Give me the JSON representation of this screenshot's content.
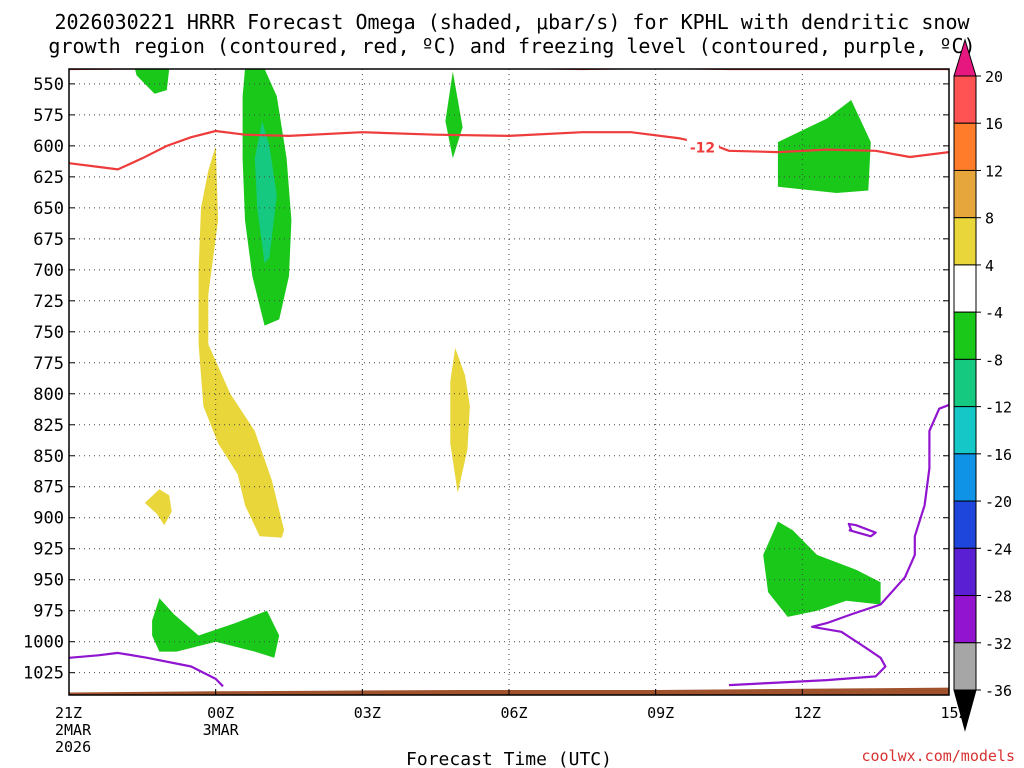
{
  "chart_data": {
    "type": "contour",
    "title_lines": [
      "2026030221 HRRR Forecast Omega (shaded, μbar/s) for KPHL with dendritic snow",
      "growth region (contoured, red, ºC) and freezing level (contoured, purple, ºC)"
    ],
    "xlabel": "Forecast Time (UTC)",
    "credit": "coolwx.com/models",
    "x_range_hours": [
      0,
      18
    ],
    "x_ticks": [
      {
        "hour": 0,
        "lines": [
          "21Z",
          "2MAR",
          "2026"
        ]
      },
      {
        "hour": 3,
        "lines": [
          "00Z",
          "3MAR"
        ]
      },
      {
        "hour": 6,
        "lines": [
          "03Z"
        ]
      },
      {
        "hour": 9,
        "lines": [
          "06Z"
        ]
      },
      {
        "hour": 12,
        "lines": [
          "09Z"
        ]
      },
      {
        "hour": 15,
        "lines": [
          "12Z"
        ]
      },
      {
        "hour": 18,
        "lines": [
          "15Z"
        ]
      }
    ],
    "y_range_mb": [
      538,
      1043
    ],
    "y_ticks": [
      550,
      575,
      600,
      625,
      650,
      675,
      700,
      725,
      750,
      775,
      800,
      825,
      850,
      875,
      900,
      925,
      950,
      975,
      1000,
      1025
    ],
    "colorbar": {
      "levels": [
        20,
        16,
        12,
        8,
        4,
        -4,
        -8,
        -12,
        -16,
        -20,
        -24,
        -28,
        -32,
        -36
      ],
      "colors": [
        "#ff5252",
        "#ff7d2a",
        "#e6a63b",
        "#e8d63a",
        "#ffffff",
        "#19c819",
        "#16c980",
        "#16c7c7",
        "#0f93e6",
        "#1f46dc",
        "#5a1fd2",
        "#9314d0",
        "#a6a6a6"
      ],
      "top_color": "#e6177f",
      "bottom_color": "#000000"
    },
    "shaded_regions": [
      {
        "name": "green-top-left",
        "value_range": [
          -8,
          -4
        ],
        "color": "#19c819",
        "points": [
          [
            1.35,
            538
          ],
          [
            2.05,
            538
          ],
          [
            2.0,
            555
          ],
          [
            1.75,
            558
          ],
          [
            1.55,
            550
          ],
          [
            1.38,
            543
          ]
        ]
      },
      {
        "name": "green-column",
        "value_range": [
          -8,
          -4
        ],
        "color": "#19c819",
        "points": [
          [
            3.6,
            538
          ],
          [
            4.0,
            538
          ],
          [
            4.25,
            560
          ],
          [
            4.45,
            610
          ],
          [
            4.55,
            660
          ],
          [
            4.5,
            705
          ],
          [
            4.3,
            740
          ],
          [
            4.0,
            745
          ],
          [
            3.75,
            705
          ],
          [
            3.6,
            660
          ],
          [
            3.55,
            610
          ],
          [
            3.55,
            560
          ]
        ]
      },
      {
        "name": "teal-core",
        "value_range": [
          -12,
          -8
        ],
        "color": "#16c980",
        "points": [
          [
            3.95,
            580
          ],
          [
            4.1,
            600
          ],
          [
            4.25,
            640
          ],
          [
            4.1,
            690
          ],
          [
            4.0,
            695
          ],
          [
            3.85,
            650
          ],
          [
            3.8,
            610
          ]
        ]
      },
      {
        "name": "green-sliver-mid",
        "value_range": [
          -8,
          -4
        ],
        "color": "#19c819",
        "points": [
          [
            7.85,
            540
          ],
          [
            8.05,
            585
          ],
          [
            7.85,
            610
          ],
          [
            7.7,
            580
          ]
        ]
      },
      {
        "name": "yellow-plume",
        "value_range": [
          4,
          8
        ],
        "color": "#e8d63a",
        "points": [
          [
            3.0,
            600
          ],
          [
            3.05,
            660
          ],
          [
            2.85,
            720
          ],
          [
            2.85,
            760
          ],
          [
            3.3,
            800
          ],
          [
            3.8,
            830
          ],
          [
            4.15,
            870
          ],
          [
            4.4,
            910
          ],
          [
            4.35,
            916
          ],
          [
            3.9,
            915
          ],
          [
            3.6,
            890
          ],
          [
            3.45,
            865
          ],
          [
            3.05,
            840
          ],
          [
            2.75,
            810
          ],
          [
            2.65,
            760
          ],
          [
            2.65,
            700
          ],
          [
            2.7,
            650
          ],
          [
            2.85,
            620
          ]
        ]
      },
      {
        "name": "yellow-small-left",
        "value_range": [
          4,
          8
        ],
        "color": "#e8d63a",
        "points": [
          [
            1.55,
            888
          ],
          [
            1.85,
            877
          ],
          [
            2.05,
            882
          ],
          [
            2.1,
            895
          ],
          [
            1.95,
            906
          ],
          [
            1.8,
            897
          ]
        ]
      },
      {
        "name": "yellow-mid",
        "value_range": [
          4,
          8
        ],
        "color": "#e8d63a",
        "points": [
          [
            7.9,
            763
          ],
          [
            8.1,
            785
          ],
          [
            8.2,
            810
          ],
          [
            8.15,
            845
          ],
          [
            7.95,
            880
          ],
          [
            7.8,
            840
          ],
          [
            7.8,
            790
          ]
        ]
      },
      {
        "name": "green-bottom-left",
        "value_range": [
          -8,
          -4
        ],
        "color": "#19c819",
        "points": [
          [
            1.7,
            983
          ],
          [
            1.85,
            965
          ],
          [
            2.15,
            978
          ],
          [
            2.65,
            995
          ],
          [
            3.4,
            985
          ],
          [
            4.05,
            975
          ],
          [
            4.3,
            995
          ],
          [
            4.2,
            1013
          ],
          [
            3.8,
            1008
          ],
          [
            3.0,
            1000
          ],
          [
            2.2,
            1008
          ],
          [
            1.85,
            1008
          ],
          [
            1.7,
            995
          ]
        ]
      },
      {
        "name": "green-right-upper",
        "value_range": [
          -8,
          -4
        ],
        "color": "#19c819",
        "points": [
          [
            14.5,
            597
          ],
          [
            15.5,
            578
          ],
          [
            16.0,
            563
          ],
          [
            16.4,
            597
          ],
          [
            16.35,
            636
          ],
          [
            15.7,
            638
          ],
          [
            14.5,
            633
          ]
        ]
      },
      {
        "name": "green-right-lower",
        "value_range": [
          -8,
          -4
        ],
        "color": "#19c819",
        "points": [
          [
            14.2,
            930
          ],
          [
            14.5,
            903
          ],
          [
            14.8,
            910
          ],
          [
            15.3,
            930
          ],
          [
            16.1,
            942
          ],
          [
            16.6,
            952
          ],
          [
            16.6,
            970
          ],
          [
            15.9,
            967
          ],
          [
            15.3,
            975
          ],
          [
            14.7,
            980
          ],
          [
            14.3,
            960
          ]
        ]
      }
    ],
    "contour_lines": [
      {
        "name": "dgz-top-contour",
        "color": "#ee3b3b",
        "points": [
          [
            0.0,
            538
          ],
          [
            3.0,
            537
          ],
          [
            6.0,
            536
          ],
          [
            9.0,
            537
          ],
          [
            10.5,
            538
          ],
          [
            12.0,
            537
          ],
          [
            13.5,
            538
          ],
          [
            18.0,
            538
          ]
        ]
      },
      {
        "name": "dgz-contour-minus12",
        "color": "#ee3b3b",
        "label": "-12",
        "points": [
          [
            0.0,
            614
          ],
          [
            0.6,
            617
          ],
          [
            1.0,
            619
          ],
          [
            1.5,
            610
          ],
          [
            2.0,
            600
          ],
          [
            2.5,
            593
          ],
          [
            3.0,
            588
          ],
          [
            3.6,
            591
          ],
          [
            4.5,
            592
          ],
          [
            6.0,
            589
          ],
          [
            7.5,
            591
          ],
          [
            9.0,
            592
          ],
          [
            10.5,
            589
          ],
          [
            11.5,
            589
          ],
          [
            12.5,
            594
          ],
          [
            13.3,
            601
          ],
          [
            13.5,
            604
          ],
          [
            14.5,
            605
          ],
          [
            15.5,
            603
          ],
          [
            16.5,
            604
          ],
          [
            17.2,
            609
          ],
          [
            18.0,
            605
          ]
        ]
      },
      {
        "name": "freezing-level-left",
        "color": "#9014d0",
        "points": [
          [
            0.0,
            1013
          ],
          [
            0.6,
            1011
          ],
          [
            1.0,
            1009
          ],
          [
            1.6,
            1013
          ],
          [
            2.5,
            1020
          ],
          [
            3.0,
            1030
          ],
          [
            3.15,
            1036
          ]
        ]
      },
      {
        "name": "freezing-level-right",
        "color": "#9014d0",
        "points": [
          [
            13.5,
            1035
          ],
          [
            14.5,
            1033
          ],
          [
            15.5,
            1031
          ],
          [
            16.5,
            1028
          ],
          [
            16.7,
            1020
          ],
          [
            16.6,
            1013
          ],
          [
            16.3,
            1005
          ],
          [
            15.8,
            992
          ],
          [
            15.2,
            988
          ],
          [
            15.5,
            985
          ],
          [
            16.0,
            978
          ],
          [
            16.6,
            970
          ],
          [
            17.1,
            948
          ],
          [
            17.3,
            930
          ],
          [
            17.3,
            915
          ],
          [
            17.5,
            890
          ],
          [
            17.6,
            860
          ],
          [
            17.6,
            830
          ],
          [
            17.8,
            812
          ],
          [
            18.0,
            809
          ]
        ]
      },
      {
        "name": "freezing-level-small-loop",
        "color": "#9014d0",
        "points": [
          [
            15.95,
            910
          ],
          [
            16.4,
            915
          ],
          [
            16.5,
            912
          ],
          [
            16.1,
            906
          ],
          [
            15.95,
            905
          ],
          [
            16.0,
            910
          ]
        ]
      }
    ],
    "terrain": {
      "color": "#a0522d",
      "points": [
        [
          0.0,
          1041
        ],
        [
          3.0,
          1040
        ],
        [
          8.0,
          1039
        ],
        [
          12.0,
          1039
        ],
        [
          15.0,
          1038
        ],
        [
          18.0,
          1037
        ]
      ]
    }
  }
}
